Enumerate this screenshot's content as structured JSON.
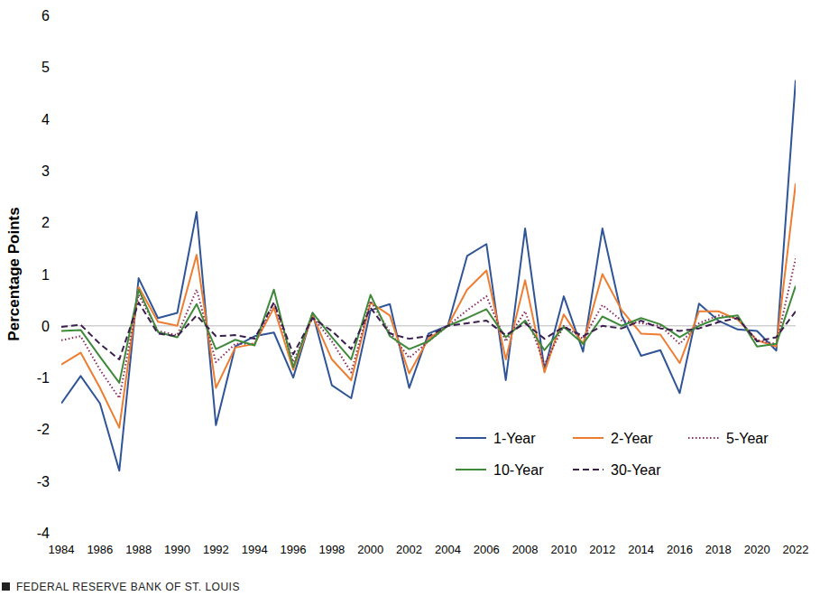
{
  "chart_data": {
    "type": "line",
    "y_label": "Percentage Points",
    "source": "FEDERAL RESERVE BANK OF ST. LOUIS",
    "x": [
      1984,
      1985,
      1986,
      1987,
      1988,
      1989,
      1990,
      1991,
      1992,
      1993,
      1994,
      1995,
      1996,
      1997,
      1998,
      1999,
      2000,
      2001,
      2002,
      2003,
      2004,
      2005,
      2006,
      2007,
      2008,
      2009,
      2010,
      2011,
      2012,
      2013,
      2014,
      2015,
      2016,
      2017,
      2018,
      2019,
      2020,
      2021,
      2022
    ],
    "xlim": [
      1984,
      2022
    ],
    "xticks": [
      1984,
      1986,
      1988,
      1990,
      1992,
      1994,
      1996,
      1998,
      2000,
      2002,
      2004,
      2006,
      2008,
      2010,
      2012,
      2014,
      2016,
      2018,
      2020,
      2022
    ],
    "ylim": [
      -4,
      6
    ],
    "yticks": [
      -4,
      -3,
      -2,
      -1,
      0,
      1,
      2,
      3,
      4,
      5,
      6
    ],
    "grid": false,
    "legend": "lower right",
    "series": [
      {
        "name": "1-Year",
        "color": "#2f5597",
        "line_style": "solid",
        "values": [
          -1.5,
          -0.97,
          -1.5,
          -2.8,
          0.92,
          0.15,
          0.25,
          2.2,
          -1.92,
          -0.4,
          -0.2,
          -0.13,
          -1.0,
          0.25,
          -1.15,
          -1.4,
          0.3,
          0.42,
          -1.2,
          -0.15,
          0.0,
          1.35,
          1.58,
          -1.05,
          1.88,
          -0.85,
          0.57,
          -0.5,
          1.88,
          0.2,
          -0.58,
          -0.47,
          -1.3,
          0.43,
          0.1,
          -0.07,
          -0.1,
          -0.48,
          4.75
        ]
      },
      {
        "name": "2-Year",
        "color": "#ed7d31",
        "line_style": "solid",
        "values": [
          -0.75,
          -0.52,
          -1.2,
          -1.97,
          0.75,
          0.08,
          0.0,
          1.37,
          -1.2,
          -0.42,
          -0.35,
          0.35,
          -0.85,
          0.2,
          -0.65,
          -1.05,
          0.45,
          0.2,
          -0.92,
          -0.25,
          0.0,
          0.7,
          1.07,
          -0.65,
          0.88,
          -0.9,
          0.22,
          -0.35,
          1.0,
          0.3,
          -0.15,
          -0.17,
          -0.72,
          0.28,
          0.28,
          0.12,
          -0.28,
          -0.4,
          2.75
        ]
      },
      {
        "name": "5-Year",
        "color": "#8b2a5a",
        "line_style": "dotted",
        "values": [
          -0.28,
          -0.2,
          -0.85,
          -1.4,
          0.6,
          -0.1,
          -0.18,
          0.7,
          -0.7,
          -0.35,
          -0.35,
          0.45,
          -0.7,
          0.17,
          -0.3,
          -0.9,
          0.48,
          -0.12,
          -0.62,
          -0.3,
          0.0,
          0.3,
          0.57,
          -0.3,
          0.28,
          -0.75,
          0.0,
          -0.25,
          0.4,
          0.1,
          0.05,
          0.0,
          -0.35,
          0.05,
          0.2,
          0.15,
          -0.28,
          -0.35,
          1.3
        ]
      },
      {
        "name": "10-Year",
        "color": "#3e8a3a",
        "line_style": "solid",
        "values": [
          -0.1,
          -0.08,
          -0.6,
          -1.1,
          0.7,
          -0.12,
          -0.22,
          0.42,
          -0.45,
          -0.27,
          -0.38,
          0.7,
          -0.8,
          0.25,
          -0.22,
          -0.65,
          0.6,
          -0.2,
          -0.45,
          -0.3,
          0.0,
          0.15,
          0.32,
          -0.22,
          0.1,
          -0.47,
          -0.02,
          -0.35,
          0.18,
          0.0,
          0.15,
          0.03,
          -0.22,
          0.0,
          0.15,
          0.2,
          -0.4,
          -0.35,
          0.77
        ]
      },
      {
        "name": "30-Year",
        "color": "#3b1f4f",
        "line_style": "dashed",
        "values": [
          -0.02,
          0.02,
          -0.35,
          -0.65,
          0.45,
          -0.15,
          -0.2,
          0.2,
          -0.2,
          -0.18,
          -0.25,
          0.45,
          -0.55,
          0.15,
          -0.1,
          -0.45,
          0.35,
          -0.15,
          -0.25,
          -0.2,
          0.0,
          0.05,
          0.1,
          -0.18,
          0.05,
          -0.25,
          -0.02,
          -0.2,
          0.0,
          -0.05,
          0.1,
          -0.05,
          -0.1,
          -0.05,
          0.07,
          0.15,
          -0.3,
          -0.22,
          0.28
        ]
      }
    ]
  }
}
